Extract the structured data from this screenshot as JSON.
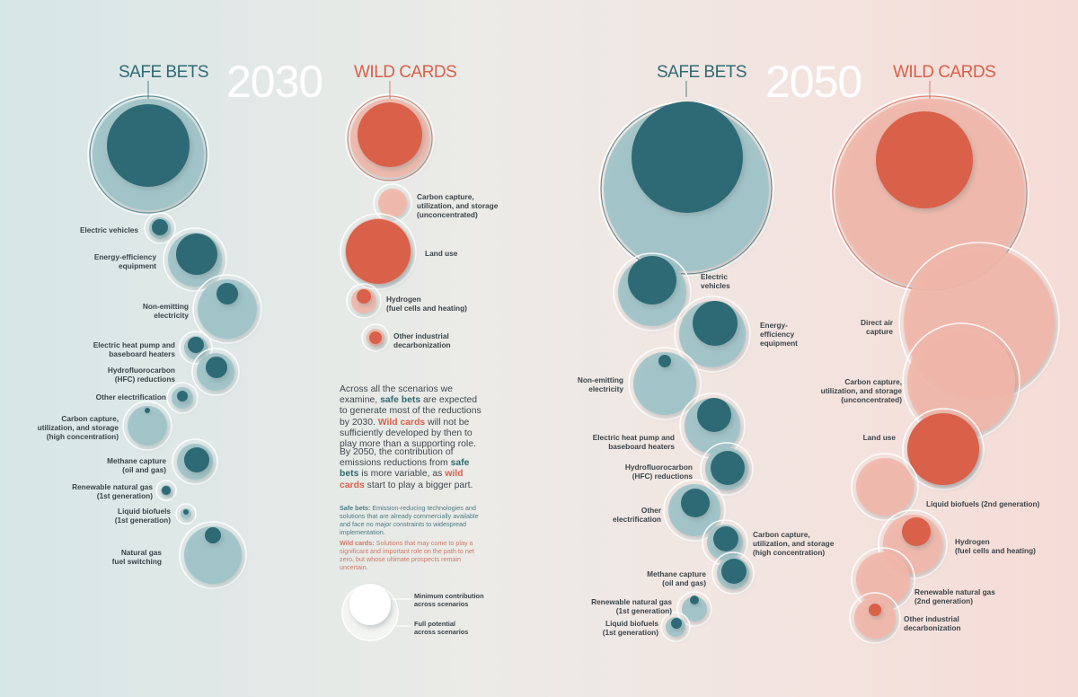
{
  "headings": {
    "safe_bets": "SAFE BETS",
    "wild_cards": "WILD CARDS",
    "year_2030": "2030",
    "year_2050": "2050"
  },
  "colors": {
    "safe_dark": "#2f6b74",
    "safe_light": "#9fc3c8",
    "wild_dark": "#d9604a",
    "wild_light": "#f2b7aa"
  },
  "labels_2030_safe": [
    "Electric vehicles",
    "Energy-efficiency\nequipment",
    "Non-emitting\nelectricity",
    "Electric heat pump and\nbaseboard heaters",
    "Hydrofluorocarbon\n(HFC) reductions",
    "Other electrification",
    "Carbon capture,\nutilization, and storage\n(high concentration)",
    "Methane capture\n(oil and gas)",
    "Renewable natural gas",
    "(1st generation)",
    "Liquid biofuels",
    "(1st generation)",
    "Natural gas\nfuel switching"
  ],
  "labels_2030_wild": [
    "Carbon capture,\nutilization, and storage\n(unconcentrated)",
    "Land use",
    "Hydrogen\n(fuel cells and heating)",
    "Other industrial\ndecarbonization"
  ],
  "labels_2050_safe": [
    "Electric\nvehicles",
    "Energy-\nefficiency\nequipment",
    "Non-emitting\nelectricity",
    "Electric heat pump and\nbaseboard heaters",
    "Hydrofluorocarbon\n(HFC) reductions",
    "Other\nelectrification",
    "Carbon capture,\nutilization, and storage\n(high concentration)",
    "Methane capture\n(oil and gas)",
    "Renewable natural gas",
    "(1st generation)",
    "Liquid biofuels",
    "(1st generation)"
  ],
  "labels_2050_wild": [
    "Direct air\ncapture",
    "Carbon capture,\nutilization, and storage\n(unconcentrated)",
    "Land use",
    "Liquid biofuels (2nd generation)",
    "Hydrogen\n(fuel cells and heating)",
    "Renewable natural gas\n(2nd generation)",
    "Other industrial\ndecarbonization"
  ],
  "text": {
    "p1_a": "Across all the scenarios we examine, ",
    "p1_safe": "safe bets",
    "p1_b": " are expected to generate most of the reductions by 2030. ",
    "p1_wild": "Wild cards",
    "p1_c": " will not be sufficiently developed by then to play more than a supporting role.",
    "p2_a": "By 2050, the contribution of emissions reductions from ",
    "p2_safe": "safe bets",
    "p2_b": " is more variable, as ",
    "p2_wild": "wild cards",
    "p2_c": " start to play a bigger part.",
    "def_safe_term": "Safe bets:",
    "def_safe_body": " Emission-reducing technologies and solutions that are already commercially available and face no major constraints to widespread implementation.",
    "def_wild_term": "Wild cards:",
    "def_wild_body": " Solutions that may come to play a significant and important role on the path to net zero, but whose ultimate prospects remain uncertain."
  },
  "legend": {
    "min_label": "Minimum contribution\nacross scenarios",
    "full_label": "Full potential\nacross scenarios"
  }
}
